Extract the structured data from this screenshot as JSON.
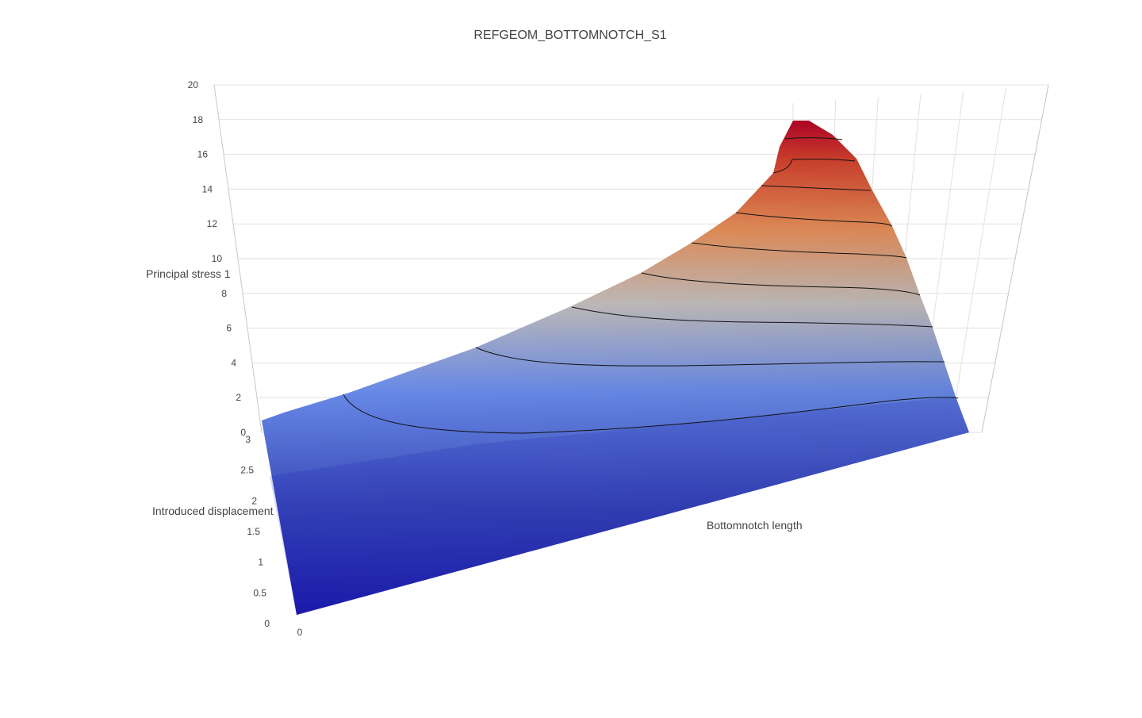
{
  "chart_data": {
    "type": "surface",
    "title": "REFGEOM_BOTTOMNOTCH_S1",
    "xlabel": "Bottomnotch length",
    "ylabel": "Introduced displacement",
    "zlabel": "Principal stress 1",
    "x_ticks": [
      "0"
    ],
    "y_ticks": [
      "0",
      "0.5",
      "1",
      "1.5",
      "2",
      "2.5",
      "3"
    ],
    "z_ticks": [
      "0",
      "2",
      "4",
      "6",
      "8",
      "10",
      "12",
      "14",
      "16",
      "18",
      "20"
    ],
    "zlim": [
      0,
      20
    ],
    "ylim": [
      0,
      3
    ],
    "colorscale": [
      "#1c1cb4",
      "#3b4cc0",
      "#6b8ef0",
      "#c0c0c8",
      "#e8905a",
      "#d2422e",
      "#b40426"
    ],
    "contour_levels": [
      2,
      4,
      6,
      8,
      10,
      12,
      14,
      16,
      18
    ],
    "grid": true
  }
}
